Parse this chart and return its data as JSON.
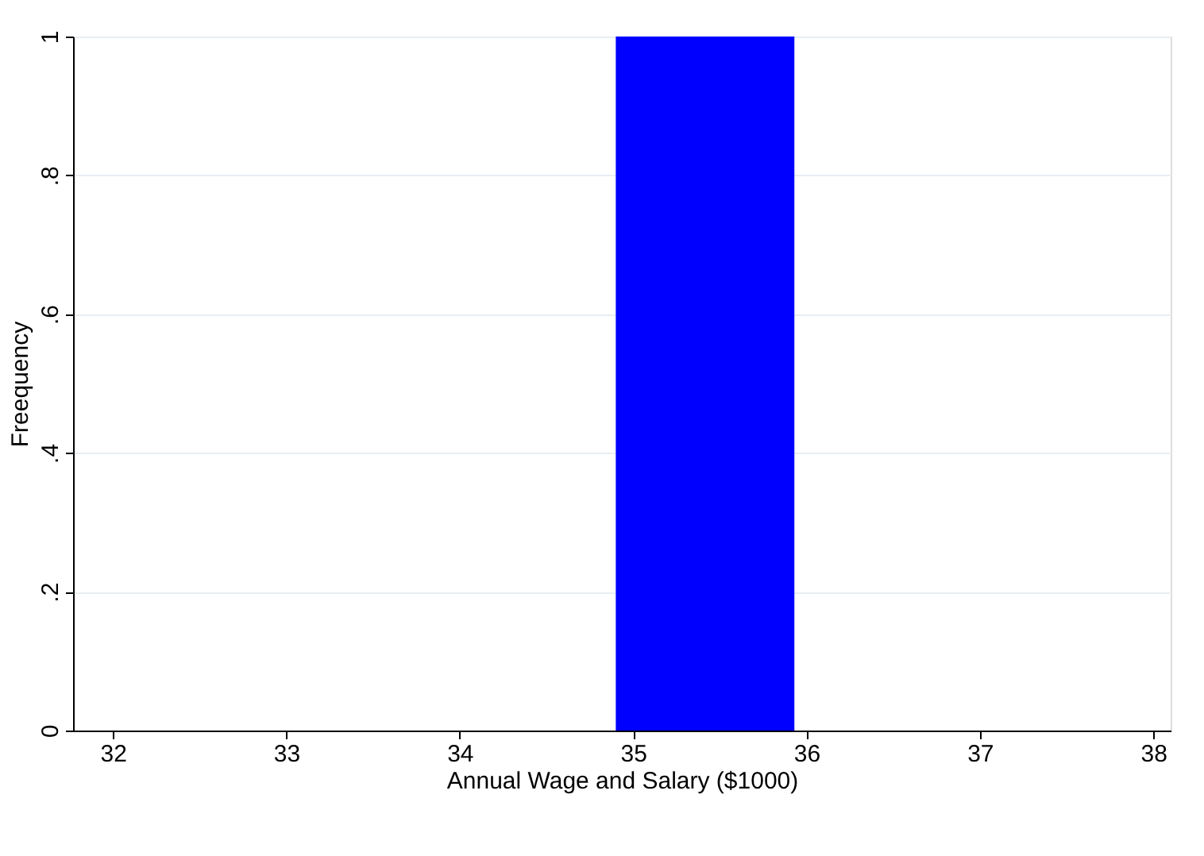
{
  "chart_data": {
    "type": "histogram",
    "xlabel": "Annual Wage and Salary ($1000)",
    "ylabel": "Freequency",
    "bins": [
      34.9,
      35.93
    ],
    "values": [
      1
    ],
    "color": "#0000ff",
    "xlim": [
      31.77,
      38.1
    ],
    "xticks": [
      32,
      33,
      34,
      35,
      36,
      37,
      38
    ],
    "ylim": [
      0,
      1
    ],
    "yticks": [
      0,
      {
        "value": 0.2,
        "label": ".2"
      },
      {
        "value": 0.4,
        "label": ".4"
      },
      {
        "value": 0.6,
        "label": ".6"
      },
      {
        "value": 0.8,
        "label": ".8"
      },
      1
    ],
    "grid": "y"
  }
}
